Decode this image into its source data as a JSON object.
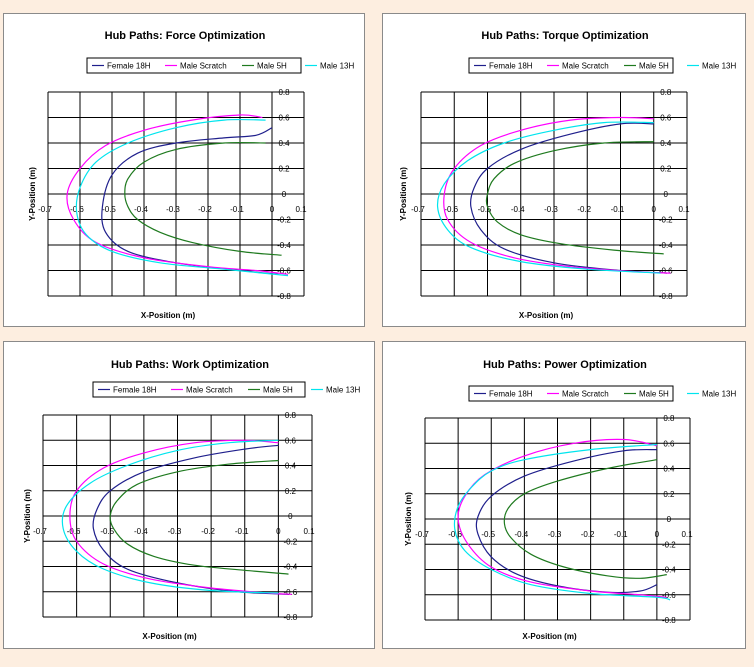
{
  "colors": {
    "Female 18H": "#1f1f8c",
    "Male Scratch": "#ff00ff",
    "Male 5H": "#1f7a1f",
    "Male 13H": "#00e5ee",
    "page_background": "#fdeee0"
  },
  "chart_data": [
    {
      "type": "line",
      "title": "Hub Paths: Force Optimization",
      "xlabel": "X-Position (m)",
      "ylabel": "Y-Position (m)",
      "xlim": [
        -0.7,
        0.1
      ],
      "ylim": [
        -0.8,
        0.8
      ],
      "xticks": [
        -0.7,
        -0.6,
        -0.5,
        -0.4,
        -0.3,
        -0.2,
        -0.1,
        0,
        0.1
      ],
      "yticks": [
        0.8,
        0.6,
        0.4,
        0.2,
        0,
        -0.2,
        -0.4,
        -0.6,
        -0.8
      ],
      "x_tick_labels": [
        "-0.7",
        "-0.6",
        "-0.5",
        "-0.4",
        "-0.3",
        "-0.2",
        "-0.1",
        "0",
        "0.1"
      ],
      "y_tick_labels": [
        "0.8",
        "0.6",
        "0.4",
        "0.2",
        "0",
        "-0.2",
        "-0.4",
        "-0.6",
        "-0.8"
      ],
      "grid": true,
      "legend": "top",
      "series": [
        {
          "name": "Female 18H",
          "x": [
            0.0,
            -0.05,
            -0.15,
            -0.3,
            -0.42,
            -0.5,
            -0.53,
            -0.52,
            -0.45,
            -0.3,
            -0.1,
            0.02
          ],
          "y": [
            0.52,
            0.46,
            0.44,
            0.4,
            0.32,
            0.15,
            -0.1,
            -0.3,
            -0.45,
            -0.54,
            -0.6,
            -0.63
          ]
        },
        {
          "name": "Male Scratch",
          "x": [
            -0.03,
            -0.1,
            -0.25,
            -0.4,
            -0.52,
            -0.6,
            -0.64,
            -0.62,
            -0.55,
            -0.4,
            -0.2,
            -0.05,
            0.05
          ],
          "y": [
            0.6,
            0.62,
            0.58,
            0.5,
            0.38,
            0.2,
            0.0,
            -0.2,
            -0.38,
            -0.5,
            -0.57,
            -0.6,
            -0.63
          ]
        },
        {
          "name": "Male 5H",
          "x": [
            -0.02,
            -0.15,
            -0.3,
            -0.4,
            -0.45,
            -0.46,
            -0.45,
            -0.42,
            -0.35,
            -0.25,
            -0.1,
            0.03
          ],
          "y": [
            0.4,
            0.4,
            0.35,
            0.25,
            0.12,
            0.0,
            -0.1,
            -0.2,
            -0.3,
            -0.38,
            -0.45,
            -0.48
          ]
        },
        {
          "name": "Male 13H",
          "x": [
            -0.02,
            -0.15,
            -0.3,
            -0.45,
            -0.55,
            -0.6,
            -0.61,
            -0.58,
            -0.5,
            -0.35,
            -0.15,
            0.05
          ],
          "y": [
            0.58,
            0.58,
            0.52,
            0.4,
            0.25,
            0.05,
            -0.15,
            -0.32,
            -0.45,
            -0.54,
            -0.59,
            -0.64
          ]
        }
      ]
    },
    {
      "type": "line",
      "title": "Hub Paths: Torque Optimization",
      "xlabel": "X-Position (m)",
      "ylabel": "Y-Position (m)",
      "xlim": [
        -0.7,
        0.1
      ],
      "ylim": [
        -0.8,
        0.8
      ],
      "xticks": [
        -0.7,
        -0.6,
        -0.5,
        -0.4,
        -0.3,
        -0.2,
        -0.1,
        0,
        0.1
      ],
      "yticks": [
        0.8,
        0.6,
        0.4,
        0.2,
        0,
        -0.2,
        -0.4,
        -0.6,
        -0.8
      ],
      "x_tick_labels": [
        "-0.7",
        "-0.6",
        "-0.5",
        "-0.4",
        "-0.3",
        "-0.2",
        "-0.1",
        "0",
        "0.1"
      ],
      "y_tick_labels": [
        "0.8",
        "0.6",
        "0.4",
        "0.2",
        "0",
        "-0.2",
        "-0.4",
        "-0.6",
        "-0.8"
      ],
      "grid": true,
      "legend": "top",
      "series": [
        {
          "name": "Female 18H",
          "x": [
            0.0,
            -0.1,
            -0.25,
            -0.4,
            -0.5,
            -0.54,
            -0.55,
            -0.52,
            -0.45,
            -0.3,
            -0.1,
            0.04
          ],
          "y": [
            0.55,
            0.55,
            0.47,
            0.35,
            0.2,
            0.05,
            -0.1,
            -0.28,
            -0.43,
            -0.54,
            -0.6,
            -0.62
          ]
        },
        {
          "name": "Male Scratch",
          "x": [
            0.0,
            -0.1,
            -0.25,
            -0.4,
            -0.52,
            -0.6,
            -0.63,
            -0.62,
            -0.55,
            -0.42,
            -0.25,
            -0.05,
            0.05
          ],
          "y": [
            0.59,
            0.6,
            0.58,
            0.5,
            0.38,
            0.2,
            0.0,
            -0.2,
            -0.38,
            -0.5,
            -0.57,
            -0.61,
            -0.62
          ]
        },
        {
          "name": "Male 5H",
          "x": [
            0.0,
            -0.15,
            -0.3,
            -0.42,
            -0.48,
            -0.5,
            -0.5,
            -0.47,
            -0.4,
            -0.28,
            -0.12,
            0.03
          ],
          "y": [
            0.41,
            0.4,
            0.34,
            0.24,
            0.12,
            0.0,
            -0.1,
            -0.22,
            -0.32,
            -0.39,
            -0.44,
            -0.47
          ]
        },
        {
          "name": "Male 13H",
          "x": [
            0.0,
            -0.15,
            -0.3,
            -0.45,
            -0.56,
            -0.63,
            -0.65,
            -0.62,
            -0.55,
            -0.4,
            -0.2,
            0.02
          ],
          "y": [
            0.56,
            0.56,
            0.5,
            0.4,
            0.26,
            0.08,
            -0.1,
            -0.28,
            -0.42,
            -0.53,
            -0.59,
            -0.62
          ]
        }
      ]
    },
    {
      "type": "line",
      "title": "Hub Paths: Work Optimization",
      "xlabel": "X-Position (m)",
      "ylabel": "Y-Position (m)",
      "xlim": [
        -0.7,
        0.1
      ],
      "ylim": [
        -0.8,
        0.8
      ],
      "xticks": [
        -0.7,
        -0.6,
        -0.5,
        -0.4,
        -0.3,
        -0.2,
        -0.1,
        0,
        0.1
      ],
      "yticks": [
        0.8,
        0.6,
        0.4,
        0.2,
        0,
        -0.2,
        -0.4,
        -0.6,
        -0.8
      ],
      "x_tick_labels": [
        "-0.7",
        "-0.6",
        "-0.5",
        "-0.4",
        "-0.3",
        "-0.2",
        "-0.1",
        "0",
        "0.1"
      ],
      "y_tick_labels": [
        "0.8",
        "0.6",
        "0.4",
        "0.2",
        "0",
        "-0.2",
        "-0.4",
        "-0.6",
        "-0.8"
      ],
      "grid": true,
      "legend": "top",
      "series": [
        {
          "name": "Female 18H",
          "x": [
            0.0,
            -0.1,
            -0.25,
            -0.4,
            -0.5,
            -0.54,
            -0.55,
            -0.52,
            -0.45,
            -0.3,
            -0.12,
            0.03
          ],
          "y": [
            0.56,
            0.53,
            0.46,
            0.35,
            0.2,
            0.05,
            -0.1,
            -0.27,
            -0.42,
            -0.53,
            -0.6,
            -0.62
          ]
        },
        {
          "name": "Male Scratch",
          "x": [
            0.0,
            -0.1,
            -0.25,
            -0.4,
            -0.52,
            -0.6,
            -0.62,
            -0.6,
            -0.52,
            -0.38,
            -0.2,
            -0.03,
            0.04
          ],
          "y": [
            0.58,
            0.6,
            0.58,
            0.5,
            0.38,
            0.2,
            0.0,
            -0.2,
            -0.38,
            -0.5,
            -0.57,
            -0.61,
            -0.62
          ]
        },
        {
          "name": "Male 5H",
          "x": [
            0.0,
            -0.15,
            -0.3,
            -0.42,
            -0.48,
            -0.5,
            -0.49,
            -0.45,
            -0.37,
            -0.25,
            -0.1,
            0.03
          ],
          "y": [
            0.44,
            0.41,
            0.35,
            0.25,
            0.12,
            0.0,
            -0.1,
            -0.22,
            -0.32,
            -0.39,
            -0.43,
            -0.46
          ]
        },
        {
          "name": "Male 13H",
          "x": [
            0.0,
            -0.15,
            -0.3,
            -0.45,
            -0.56,
            -0.63,
            -0.64,
            -0.6,
            -0.52,
            -0.38,
            -0.2,
            0.0
          ],
          "y": [
            0.6,
            0.58,
            0.52,
            0.4,
            0.26,
            0.08,
            -0.1,
            -0.28,
            -0.42,
            -0.53,
            -0.59,
            -0.61
          ]
        }
      ]
    },
    {
      "type": "line",
      "title": "Hub Paths: Power Optimization",
      "xlabel": "X-Position (m)",
      "ylabel": "Y-Position (m)",
      "xlim": [
        -0.7,
        0.1
      ],
      "ylim": [
        -0.8,
        0.8
      ],
      "xticks": [
        -0.7,
        -0.6,
        -0.5,
        -0.4,
        -0.3,
        -0.2,
        -0.1,
        0,
        0.1
      ],
      "yticks": [
        0.8,
        0.6,
        0.4,
        0.2,
        0,
        -0.2,
        -0.4,
        -0.6,
        -0.8
      ],
      "x_tick_labels": [
        "-0.7",
        "-0.6",
        "-0.5",
        "-0.4",
        "-0.3",
        "-0.2",
        "-0.1",
        "0",
        "0.1"
      ],
      "y_tick_labels": [
        "0.8",
        "0.6",
        "0.4",
        "0.2",
        "0",
        "-0.2",
        "-0.4",
        "-0.6",
        "-0.8"
      ],
      "grid": true,
      "legend": "top",
      "series": [
        {
          "name": "Female 18H",
          "x": [
            0.0,
            -0.1,
            -0.25,
            -0.4,
            -0.5,
            -0.54,
            -0.54,
            -0.5,
            -0.42,
            -0.3,
            -0.15,
            -0.05,
            0.0
          ],
          "y": [
            0.55,
            0.54,
            0.46,
            0.34,
            0.18,
            0.02,
            -0.12,
            -0.3,
            -0.44,
            -0.53,
            -0.58,
            -0.57,
            -0.52
          ]
        },
        {
          "name": "Male Scratch",
          "x": [
            0.0,
            -0.1,
            -0.25,
            -0.4,
            -0.52,
            -0.58,
            -0.6,
            -0.57,
            -0.5,
            -0.38,
            -0.2,
            -0.05,
            0.03
          ],
          "y": [
            0.58,
            0.63,
            0.6,
            0.5,
            0.35,
            0.18,
            0.0,
            -0.2,
            -0.38,
            -0.5,
            -0.57,
            -0.6,
            -0.62
          ]
        },
        {
          "name": "Male 5H",
          "x": [
            0.0,
            -0.15,
            -0.3,
            -0.4,
            -0.45,
            -0.46,
            -0.44,
            -0.38,
            -0.28,
            -0.15,
            -0.05,
            0.03
          ],
          "y": [
            0.47,
            0.4,
            0.3,
            0.2,
            0.08,
            -0.04,
            -0.15,
            -0.28,
            -0.38,
            -0.45,
            -0.47,
            -0.44
          ]
        },
        {
          "name": "Male 13H",
          "x": [
            0.0,
            -0.2,
            -0.4,
            -0.5,
            -0.56,
            -0.6,
            -0.61,
            -0.58,
            -0.5,
            -0.38,
            -0.2,
            0.0,
            0.04
          ],
          "y": [
            0.59,
            0.55,
            0.47,
            0.38,
            0.25,
            0.1,
            -0.08,
            -0.25,
            -0.4,
            -0.52,
            -0.59,
            -0.62,
            -0.64
          ]
        }
      ]
    }
  ]
}
